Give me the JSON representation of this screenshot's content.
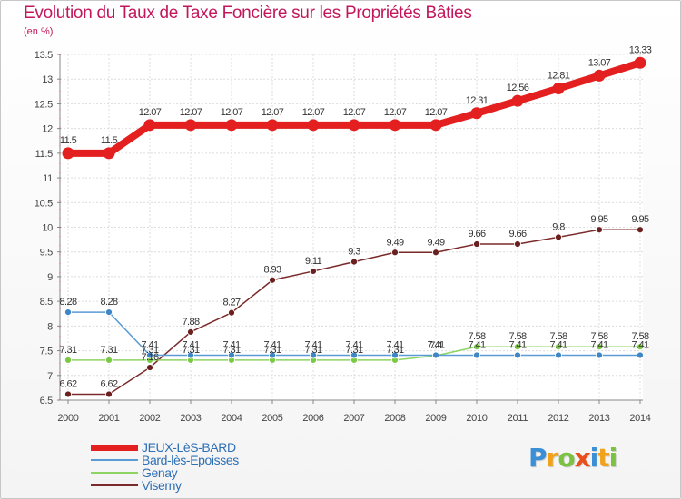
{
  "header": {
    "title": "Evolution du Taux de Taxe Foncière sur les Propriétés Bâties",
    "subtitle": "(en %)"
  },
  "logo": {
    "letters": [
      "P",
      "r",
      "o",
      "x",
      "i",
      "t",
      "i"
    ],
    "colors": [
      "#3a8fd6",
      "#f0a21b",
      "#7cc242",
      "#e94e1b",
      "#3a8fd6",
      "#f0a21b",
      "#7cc242"
    ]
  },
  "chart_data": {
    "type": "line",
    "title": "Evolution du Taux de Taxe Foncière sur les Propriétés Bâties",
    "ylabel": "(en %)",
    "xlabel": "",
    "ylim": [
      6.5,
      13.5
    ],
    "yticks": [
      "6.5",
      "7",
      "7.5",
      "8",
      "8.5",
      "9",
      "9.5",
      "10",
      "10.5",
      "11",
      "11.5",
      "12",
      "12.5",
      "13",
      "13.5"
    ],
    "categories": [
      "2000",
      "2001",
      "2002",
      "2003",
      "2004",
      "2005",
      "2006",
      "2007",
      "2008",
      "2009",
      "2010",
      "2011",
      "2012",
      "2013",
      "2014"
    ],
    "grid": true,
    "legend_position": "bottom-left",
    "series": [
      {
        "name": "JEUX-LèS-BARD",
        "color": "#e41f1f",
        "marker": "#e41f1f",
        "values": [
          11.5,
          11.5,
          12.07,
          12.07,
          12.07,
          12.07,
          12.07,
          12.07,
          12.07,
          12.07,
          12.31,
          12.56,
          12.81,
          13.07,
          13.33
        ],
        "labels": [
          "11.5",
          "11.5",
          "12.07",
          "12.07",
          "12.07",
          "12.07",
          "12.07",
          "12.07",
          "12.07",
          "12.07",
          "12.31",
          "12.56",
          "12.81",
          "13.07",
          "13.33"
        ]
      },
      {
        "name": "Bard-lès-Epoisses",
        "color": "#5b9bd5",
        "marker": "#3f86c6",
        "values": [
          8.28,
          8.28,
          7.41,
          7.41,
          7.41,
          7.41,
          7.41,
          7.41,
          7.41,
          7.41,
          7.41,
          7.41,
          7.41,
          7.41,
          7.41
        ],
        "labels": [
          "8.28",
          "8.28",
          "7.41",
          "7.41",
          "7.41",
          "7.41",
          "7.41",
          "7.41",
          "7.41",
          "7.41",
          "7.41",
          "7.41",
          "7.41",
          "7.41",
          "7.41"
        ]
      },
      {
        "name": "Genay",
        "color": "#8ed462",
        "marker": "#7ac943",
        "values": [
          7.31,
          7.31,
          7.31,
          7.31,
          7.31,
          7.31,
          7.31,
          7.31,
          7.31,
          7.4,
          7.58,
          7.58,
          7.58,
          7.58,
          7.58
        ],
        "labels": [
          "7.31",
          "7.31",
          "7.31",
          "7.31",
          "7.31",
          "7.31",
          "7.31",
          "7.31",
          "7.31",
          "7.4",
          "7.58",
          "7.58",
          "7.58",
          "7.58",
          "7.58"
        ]
      },
      {
        "name": "Viserny",
        "color": "#7a2a2a",
        "marker": "#6b1f1f",
        "values": [
          6.62,
          6.62,
          7.16,
          7.88,
          8.27,
          8.93,
          9.11,
          9.3,
          9.49,
          9.49,
          9.66,
          9.66,
          9.8,
          9.95,
          9.95
        ],
        "labels": [
          "6.62",
          "6.62",
          "7.16",
          "7.88",
          "8.27",
          "8.93",
          "9.11",
          "9.3",
          "9.49",
          "9.49",
          "9.66",
          "9.66",
          "9.8",
          "9.95",
          "9.95"
        ]
      }
    ]
  }
}
